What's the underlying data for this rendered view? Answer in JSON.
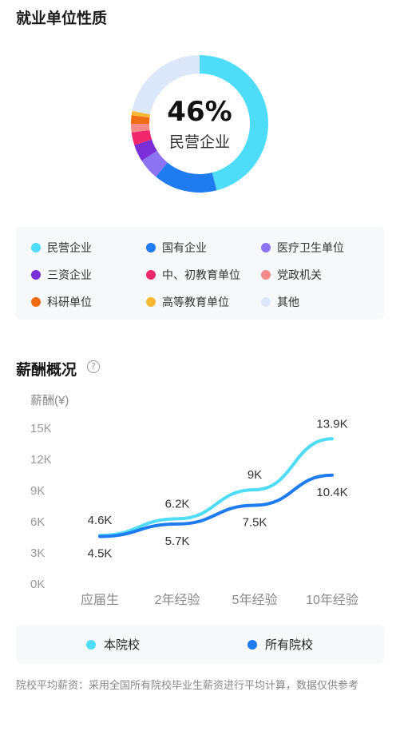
{
  "employment": {
    "title": "就业单位性质",
    "center_percent": "46%",
    "center_label": "民营企业",
    "legend": [
      {
        "label": "民营企业",
        "color": "#4fdcf8"
      },
      {
        "label": "国有企业",
        "color": "#1f7cf0"
      },
      {
        "label": "医疗卫生单位",
        "color": "#8b73f2"
      },
      {
        "label": "三资企业",
        "color": "#7a2fd6"
      },
      {
        "label": "中、初教育单位",
        "color": "#f0276a"
      },
      {
        "label": "党政机关",
        "color": "#f58a8a"
      },
      {
        "label": "科研单位",
        "color": "#f26a11"
      },
      {
        "label": "高等教育单位",
        "color": "#f7b733"
      },
      {
        "label": "其他",
        "color": "#dde7fa"
      }
    ],
    "donut": [
      {
        "label": "民营企业",
        "value": 46
      },
      {
        "label": "国有企业",
        "value": 15
      },
      {
        "label": "医疗卫生单位",
        "value": 5
      },
      {
        "label": "三资企业",
        "value": 4
      },
      {
        "label": "中、初教育单位",
        "value": 3
      },
      {
        "label": "党政机关",
        "value": 2
      },
      {
        "label": "科研单位",
        "value": 2
      },
      {
        "label": "高等教育单位",
        "value": 1
      },
      {
        "label": "其他",
        "value": 22
      }
    ]
  },
  "salary": {
    "title": "薪酬概况",
    "help_icon": "question-circle-icon",
    "footnote": "院校平均薪资：采用全国所有院校毕业生薪资进行平均计算，数据仅供参考"
  },
  "chart_data": {
    "type": "line",
    "ylabel": "薪酬(¥)",
    "ylim": [
      0,
      15
    ],
    "yticks": [
      "0K",
      "3K",
      "6K",
      "9K",
      "12K",
      "15K"
    ],
    "categories": [
      "应届生",
      "2年经验",
      "5年经验",
      "10年经验"
    ],
    "series": [
      {
        "name": "本院校",
        "color": "#4fdcf8",
        "values": [
          4.6,
          6.2,
          9.0,
          13.9
        ],
        "labels": [
          "4.6K",
          "6.2K",
          "9K",
          "13.9K"
        ]
      },
      {
        "name": "所有院校",
        "color": "#1f7cf0",
        "values": [
          4.5,
          5.7,
          7.5,
          10.4
        ],
        "labels": [
          "4.5K",
          "5.7K",
          "7.5K",
          "10.4K"
        ]
      }
    ],
    "grid": false
  }
}
